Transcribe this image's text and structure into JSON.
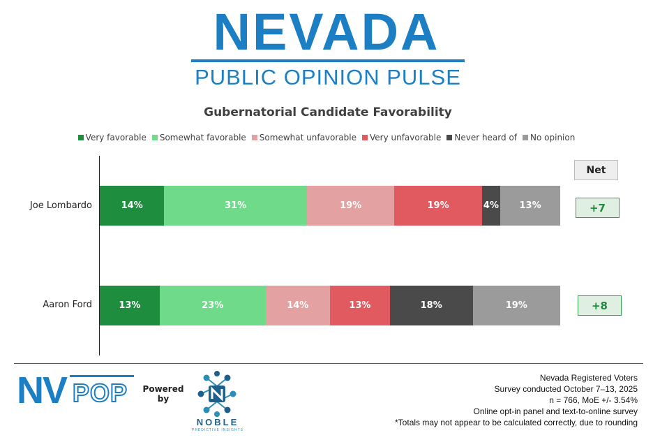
{
  "brand": {
    "title": "NEVADA",
    "subtitle": "PUBLIC OPINION PULSE"
  },
  "chart_data": {
    "type": "bar",
    "orientation": "horizontal",
    "stacked": true,
    "title": "Gubernatorial Candidate Favorability",
    "categories": [
      "Joe Lombardo",
      "Aaron Ford"
    ],
    "series": [
      {
        "name": "Very favorable",
        "color": "#1e8e3e",
        "values": [
          14,
          13
        ],
        "labels": [
          "14%",
          "13%"
        ]
      },
      {
        "name": "Somewhat favorable",
        "color": "#6fdb8a",
        "values": [
          31,
          23
        ],
        "labels": [
          "31%",
          "23%"
        ]
      },
      {
        "name": "Somewhat unfavorable",
        "color": "#e3a1a1",
        "values": [
          19,
          14
        ],
        "labels": [
          "19%",
          "14%"
        ]
      },
      {
        "name": "Very unfavorable",
        "color": "#e05a5f",
        "values": [
          19,
          13
        ],
        "labels": [
          "19%",
          "13%"
        ]
      },
      {
        "name": "Never heard of",
        "color": "#4a4a4a",
        "values": [
          4,
          18
        ],
        "labels": [
          "4%",
          "18%"
        ]
      },
      {
        "name": "No opinion",
        "color": "#9b9b9b",
        "values": [
          13,
          19
        ],
        "labels": [
          "13%",
          "19%"
        ]
      }
    ],
    "net": {
      "header": "Net",
      "values": [
        "+7",
        "+8"
      ]
    },
    "legend_position": "top"
  },
  "footer": {
    "logo_text": "NVPOP",
    "powered_by": "Powered by",
    "partner_name": "NOBLE",
    "partner_tagline": "PREDICTIVE INSIGHTS",
    "notes": [
      "Nevada Registered Voters",
      "Survey conducted October 7–13, 2025",
      "n = 766, MoE +/- 3.54%",
      "Online opt-in panel and text-to-online survey",
      "*Totals may not appear to be calculated correctly, due to rounding"
    ]
  }
}
